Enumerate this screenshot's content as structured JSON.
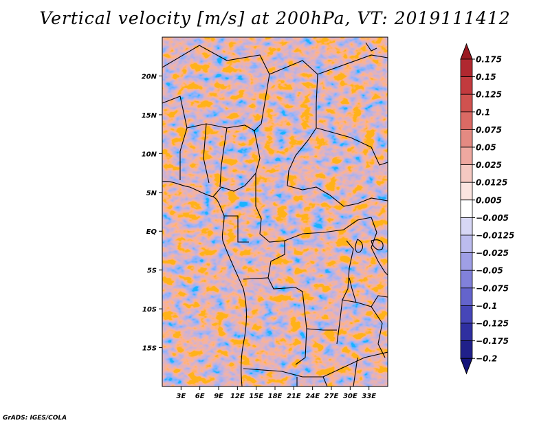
{
  "title": "Vertical velocity [m/s] at 200hPa, VT: 2019111412",
  "credit": "GrADS: IGES/COLA",
  "map": {
    "lon_range": [
      0,
      36
    ],
    "lat_range": [
      -20,
      25
    ],
    "lon_ticks": [
      "3E",
      "6E",
      "9E",
      "12E",
      "15E",
      "18E",
      "21E",
      "24E",
      "27E",
      "30E",
      "33E"
    ],
    "lon_tick_values": [
      3,
      6,
      9,
      12,
      15,
      18,
      21,
      24,
      27,
      30,
      33
    ],
    "lat_ticks": [
      "20N",
      "15N",
      "10N",
      "5N",
      "EQ",
      "5S",
      "10S",
      "15S"
    ],
    "lat_tick_values": [
      20,
      15,
      10,
      5,
      0,
      -5,
      -10,
      -15
    ]
  },
  "colorbar": {
    "labels": [
      "0.175",
      "0.15",
      "0.125",
      "0.1",
      "0.075",
      "0.05",
      "0.025",
      "0.0125",
      "0.005",
      "-0.005",
      "-0.0125",
      "-0.025",
      "-0.05",
      "-0.075",
      "-0.1",
      "-0.125",
      "-0.175",
      "-0.2"
    ],
    "colors": [
      "#9a1a22",
      "#b02830",
      "#c23a3e",
      "#d0524f",
      "#db6a64",
      "#e48a82",
      "#eea8a0",
      "#f5c9c2",
      "#fbe4e0",
      "#ffffff",
      "#d7d7f5",
      "#bcbcee",
      "#9f9fe6",
      "#8181da",
      "#6464cc",
      "#4646b8",
      "#2f2fa0",
      "#20208a",
      "#14147a"
    ]
  }
}
